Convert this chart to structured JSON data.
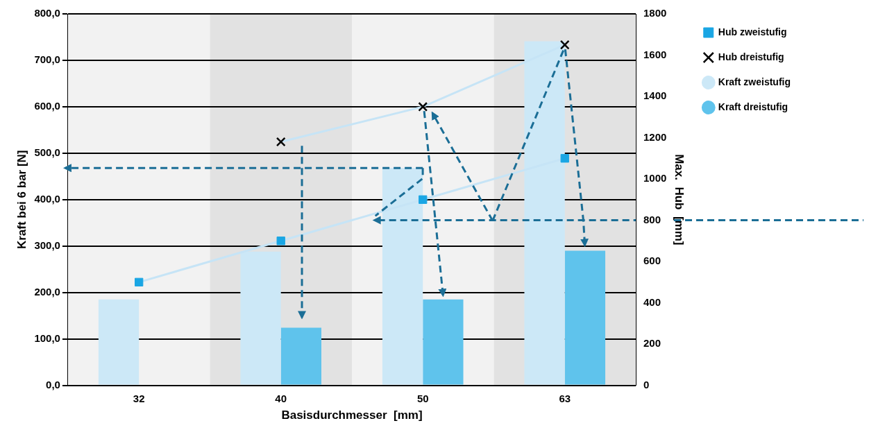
{
  "chart_data": {
    "type": "bar",
    "categories": [
      "32",
      "40",
      "50",
      "63"
    ],
    "xlabel": "Basisdurchmesser  [mm]",
    "ylabel": "Kraft bei 6 bar [N]",
    "y2label": "Max.  Hub  [mm]",
    "ylim": [
      0,
      800
    ],
    "yticks": [
      {
        "value": 0,
        "label": "0,0"
      },
      {
        "value": 100,
        "label": "100,0"
      },
      {
        "value": 200,
        "label": "200,0"
      },
      {
        "value": 300,
        "label": "300,0"
      },
      {
        "value": 400,
        "label": "400,0"
      },
      {
        "value": 500,
        "label": "500,0"
      },
      {
        "value": 600,
        "label": "600,0"
      },
      {
        "value": 700,
        "label": "700,0"
      },
      {
        "value": 800,
        "label": "800,0"
      }
    ],
    "y2lim": [
      0,
      1800
    ],
    "y2ticks": [
      0,
      200,
      400,
      600,
      800,
      1000,
      1200,
      1400,
      1600,
      1800
    ],
    "grid": "y",
    "legend": "right",
    "ref_lines": [
      {
        "axis": "y2",
        "value": 800,
        "color": "#1b6e96",
        "line_style": "dashed"
      }
    ],
    "series": [
      {
        "name": "Hub zweistufig",
        "type": "line",
        "axis": "y2",
        "color": "#c6e4f6",
        "colors": [
          "#1aa6e4",
          "#1aa6e4",
          "#1aa6e4",
          "#1aa6e4"
        ],
        "marker": "square",
        "values": [
          500,
          700,
          900,
          1100
        ]
      },
      {
        "name": "Hub dreistufig",
        "type": "line",
        "axis": "y2",
        "color": "#c6e4f6",
        "colors": [
          "#000000",
          "#000000",
          "#000000",
          "#000000"
        ],
        "marker": "cross",
        "values": [
          null,
          1180,
          1350,
          1650
        ]
      },
      {
        "name": "Kraft zweistufig",
        "color": "#cce8f7",
        "values": [
          185,
          288,
          468,
          741
        ]
      },
      {
        "name": "Kraft dreistufig",
        "color": "#5fc3ec",
        "values": [
          null,
          124,
          185,
          290
        ]
      }
    ]
  }
}
